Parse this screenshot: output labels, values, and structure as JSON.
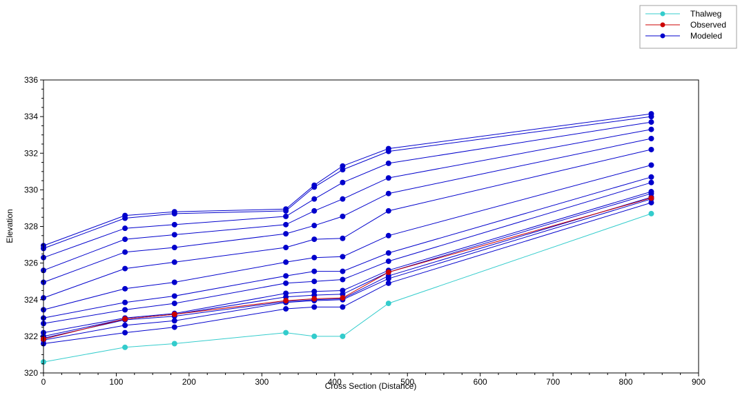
{
  "chart_data": {
    "type": "line",
    "title": "",
    "xlabel": "Cross Section (Distance)",
    "ylabel": "Elevation",
    "xlim": [
      0,
      900
    ],
    "ylim": [
      320,
      336
    ],
    "xticks": [
      0,
      100,
      200,
      300,
      400,
      500,
      600,
      700,
      800,
      900
    ],
    "yticks": [
      320,
      322,
      324,
      326,
      328,
      330,
      332,
      334,
      336
    ],
    "x": [
      0,
      112,
      180,
      333,
      372,
      411,
      474,
      835
    ],
    "legend": {
      "placement": "top-right",
      "entries": [
        {
          "label": "Thalweg",
          "color": "#33cccc"
        },
        {
          "label": "Observed",
          "color": "#cc0000"
        },
        {
          "label": "Modeled",
          "color": "#0000cc"
        }
      ]
    },
    "series": [
      {
        "name": "Thalweg",
        "color": "#33cccc",
        "values": [
          320.6,
          321.4,
          321.6,
          322.2,
          322.0,
          322.0,
          323.8,
          328.7
        ]
      },
      {
        "name": "Observed",
        "color": "#cc0000",
        "values": [
          321.85,
          322.95,
          323.2,
          323.95,
          324.05,
          324.1,
          325.5,
          329.55
        ]
      },
      {
        "name": "Modeled",
        "color": "#0000cc",
        "values": [
          321.6,
          322.2,
          322.5,
          323.5,
          323.6,
          323.6,
          324.9,
          329.3
        ]
      },
      {
        "name": "Modeled",
        "color": "#0000cc",
        "values": [
          321.8,
          322.6,
          322.85,
          323.85,
          323.95,
          324.0,
          325.15,
          329.5
        ]
      },
      {
        "name": "Modeled",
        "color": "#0000cc",
        "values": [
          321.9,
          322.9,
          323.1,
          323.9,
          324.0,
          324.05,
          325.3,
          329.6
        ]
      },
      {
        "name": "Modeled",
        "color": "#0000cc",
        "values": [
          322.0,
          322.95,
          323.2,
          324.15,
          324.25,
          324.3,
          325.5,
          329.8
        ]
      },
      {
        "name": "Modeled",
        "color": "#0000cc",
        "values": [
          322.2,
          323.0,
          323.25,
          324.35,
          324.45,
          324.5,
          325.6,
          329.9
        ]
      },
      {
        "name": "Modeled",
        "color": "#0000cc",
        "values": [
          322.7,
          323.45,
          323.8,
          324.9,
          325.0,
          325.1,
          326.1,
          330.4
        ]
      },
      {
        "name": "Modeled",
        "color": "#0000cc",
        "values": [
          323.0,
          323.85,
          324.2,
          325.3,
          325.55,
          325.55,
          326.55,
          330.7
        ]
      },
      {
        "name": "Modeled",
        "color": "#0000cc",
        "values": [
          323.45,
          324.6,
          324.95,
          326.05,
          326.3,
          326.35,
          327.5,
          331.35
        ]
      },
      {
        "name": "Modeled",
        "color": "#0000cc",
        "values": [
          324.1,
          325.7,
          326.05,
          326.85,
          327.3,
          327.35,
          328.85,
          332.2
        ]
      },
      {
        "name": "Modeled",
        "color": "#0000cc",
        "values": [
          324.95,
          326.6,
          326.85,
          327.6,
          328.05,
          328.55,
          329.8,
          332.8
        ]
      },
      {
        "name": "Modeled",
        "color": "#0000cc",
        "values": [
          325.6,
          327.3,
          327.55,
          328.1,
          328.85,
          329.5,
          330.65,
          333.3
        ]
      },
      {
        "name": "Modeled",
        "color": "#0000cc",
        "values": [
          326.3,
          327.9,
          328.1,
          328.55,
          329.5,
          330.4,
          331.45,
          333.7
        ]
      },
      {
        "name": "Modeled",
        "color": "#0000cc",
        "values": [
          326.8,
          328.45,
          328.7,
          328.85,
          330.15,
          331.1,
          332.1,
          334.0
        ]
      },
      {
        "name": "Modeled",
        "color": "#0000cc",
        "values": [
          326.95,
          328.6,
          328.8,
          328.95,
          330.25,
          331.3,
          332.25,
          334.15
        ]
      }
    ]
  }
}
